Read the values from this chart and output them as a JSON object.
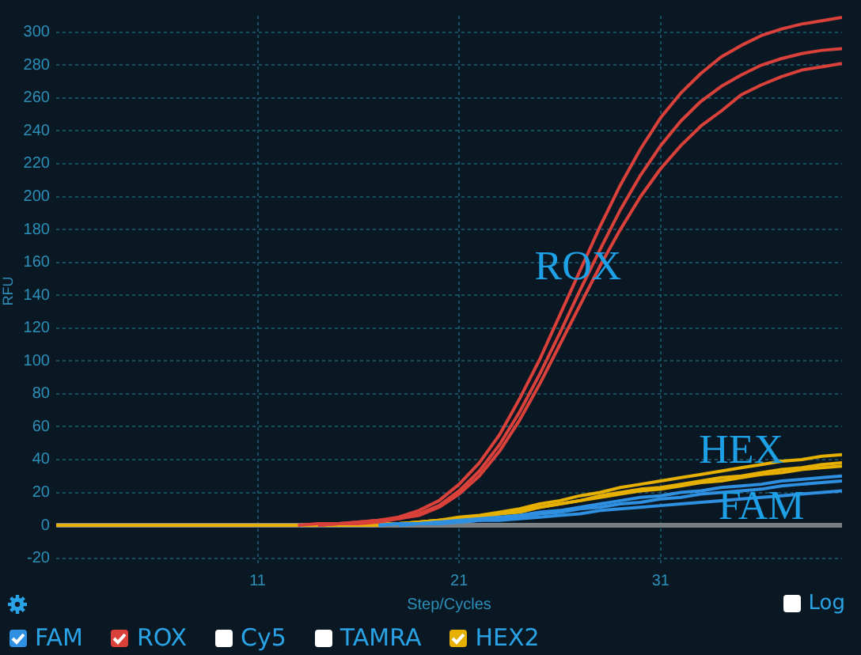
{
  "chart_data": {
    "type": "line",
    "xlabel": "Step/Cycles",
    "ylabel": "RFU",
    "x": [
      1,
      2,
      3,
      4,
      5,
      6,
      7,
      8,
      9,
      10,
      11,
      12,
      13,
      14,
      15,
      16,
      17,
      18,
      19,
      20,
      21,
      22,
      23,
      24,
      25,
      26,
      27,
      28,
      29,
      30,
      31,
      32,
      33,
      34,
      35,
      36,
      37,
      38,
      39,
      40
    ],
    "xlim": [
      1,
      40
    ],
    "xticks": [
      11,
      21,
      31
    ],
    "ylim": [
      -25,
      310
    ],
    "yticks": [
      -20,
      0,
      20,
      40,
      60,
      80,
      100,
      120,
      140,
      160,
      180,
      200,
      220,
      240,
      260,
      280,
      300
    ],
    "grid": true,
    "marker": "none",
    "legend": "bottom",
    "series": [
      {
        "name": "FAM",
        "color": "#2f8fe0",
        "values": [
          null,
          null,
          null,
          null,
          null,
          null,
          null,
          null,
          null,
          null,
          null,
          null,
          null,
          null,
          null,
          null,
          0,
          1,
          1,
          2,
          3,
          4,
          5,
          6,
          8,
          9,
          11,
          13,
          15,
          17,
          18,
          20,
          21,
          23,
          24,
          25,
          27,
          28,
          29,
          30
        ]
      },
      {
        "color": "#2f8fe0",
        "values": [
          null,
          null,
          null,
          null,
          null,
          null,
          null,
          null,
          null,
          null,
          null,
          null,
          null,
          null,
          null,
          null,
          0,
          1,
          1,
          2,
          2,
          3,
          4,
          5,
          7,
          8,
          10,
          11,
          13,
          14,
          16,
          17,
          19,
          20,
          21,
          22,
          24,
          25,
          26,
          27
        ]
      },
      {
        "color": "#2f8fe0",
        "values": [
          null,
          null,
          null,
          null,
          null,
          null,
          null,
          null,
          null,
          null,
          null,
          null,
          null,
          null,
          null,
          null,
          null,
          0,
          1,
          1,
          2,
          3,
          3,
          4,
          5,
          6,
          7,
          9,
          10,
          11,
          12,
          13,
          14,
          15,
          16,
          17,
          18,
          19,
          20,
          21
        ]
      },
      {
        "name": "ROX",
        "color": "#d9413a",
        "values": [
          null,
          null,
          null,
          null,
          null,
          null,
          null,
          null,
          null,
          null,
          null,
          null,
          0,
          1,
          1,
          2,
          3,
          5,
          9,
          15,
          25,
          38,
          55,
          77,
          101,
          128,
          155,
          182,
          207,
          229,
          248,
          263,
          275,
          285,
          292,
          298,
          302,
          305,
          307,
          309
        ]
      },
      {
        "color": "#d9413a",
        "values": [
          null,
          null,
          null,
          null,
          null,
          null,
          null,
          null,
          null,
          null,
          null,
          null,
          null,
          0,
          1,
          2,
          3,
          4,
          7,
          12,
          21,
          33,
          49,
          69,
          92,
          117,
          143,
          168,
          192,
          213,
          231,
          246,
          258,
          267,
          274,
          280,
          284,
          287,
          289,
          290
        ]
      },
      {
        "color": "#d9413a",
        "values": [
          null,
          null,
          null,
          null,
          null,
          null,
          null,
          null,
          null,
          null,
          null,
          null,
          null,
          0,
          1,
          1,
          2,
          4,
          6,
          11,
          19,
          30,
          45,
          64,
          86,
          110,
          134,
          158,
          180,
          200,
          217,
          231,
          243,
          252,
          262,
          268,
          273,
          277,
          279,
          281
        ]
      },
      {
        "name": "Cy5",
        "color": "#ffffff",
        "values": [
          null,
          null,
          null,
          null,
          null,
          null,
          null,
          null,
          null,
          null,
          null,
          null,
          null,
          null,
          null,
          null,
          null,
          null,
          null,
          null,
          null,
          null,
          null,
          null,
          null,
          null,
          null,
          null,
          null,
          null,
          null,
          null,
          null,
          null,
          null,
          null,
          null,
          null,
          null,
          null
        ]
      },
      {
        "name": "TAMRA",
        "color": "#ffffff",
        "values": [
          null,
          null,
          null,
          null,
          null,
          null,
          null,
          null,
          null,
          null,
          null,
          null,
          null,
          null,
          null,
          null,
          null,
          null,
          null,
          null,
          null,
          null,
          null,
          null,
          null,
          null,
          null,
          null,
          null,
          null,
          null,
          null,
          null,
          null,
          null,
          null,
          null,
          null,
          null,
          null
        ]
      },
      {
        "name": "HEX2",
        "color": "#e6b000",
        "values": [
          null,
          null,
          null,
          null,
          null,
          null,
          null,
          null,
          null,
          null,
          null,
          null,
          null,
          null,
          null,
          0,
          1,
          1,
          2,
          3,
          5,
          6,
          8,
          10,
          13,
          15,
          18,
          20,
          23,
          25,
          27,
          29,
          31,
          33,
          35,
          37,
          39,
          40,
          42,
          43
        ]
      },
      {
        "color": "#e6b000",
        "values": [
          null,
          null,
          null,
          null,
          null,
          null,
          null,
          null,
          null,
          null,
          null,
          null,
          null,
          null,
          null,
          null,
          0,
          1,
          2,
          3,
          4,
          5,
          7,
          9,
          11,
          13,
          15,
          18,
          20,
          22,
          23,
          25,
          27,
          29,
          30,
          32,
          34,
          35,
          37,
          38
        ]
      },
      {
        "color": "#e6b000",
        "values": [
          0,
          0,
          0,
          0,
          0,
          0,
          0,
          0,
          0,
          0,
          0,
          0,
          0,
          0,
          0,
          0,
          0,
          1,
          2,
          3,
          4,
          5,
          7,
          8,
          11,
          13,
          15,
          17,
          19,
          21,
          22,
          24,
          26,
          27,
          29,
          31,
          32,
          34,
          35,
          36
        ]
      }
    ],
    "ref_lines": [
      {
        "axis": "y",
        "value": 0,
        "color": "#7a7f84"
      }
    ],
    "annotations": [
      {
        "text": "ROX",
        "x": 26.9,
        "y": 147
      },
      {
        "text": "HEX",
        "x": 35,
        "y": 35
      },
      {
        "text": "FAM",
        "x": 36,
        "y": 1
      },
      "Log"
    ]
  }
}
